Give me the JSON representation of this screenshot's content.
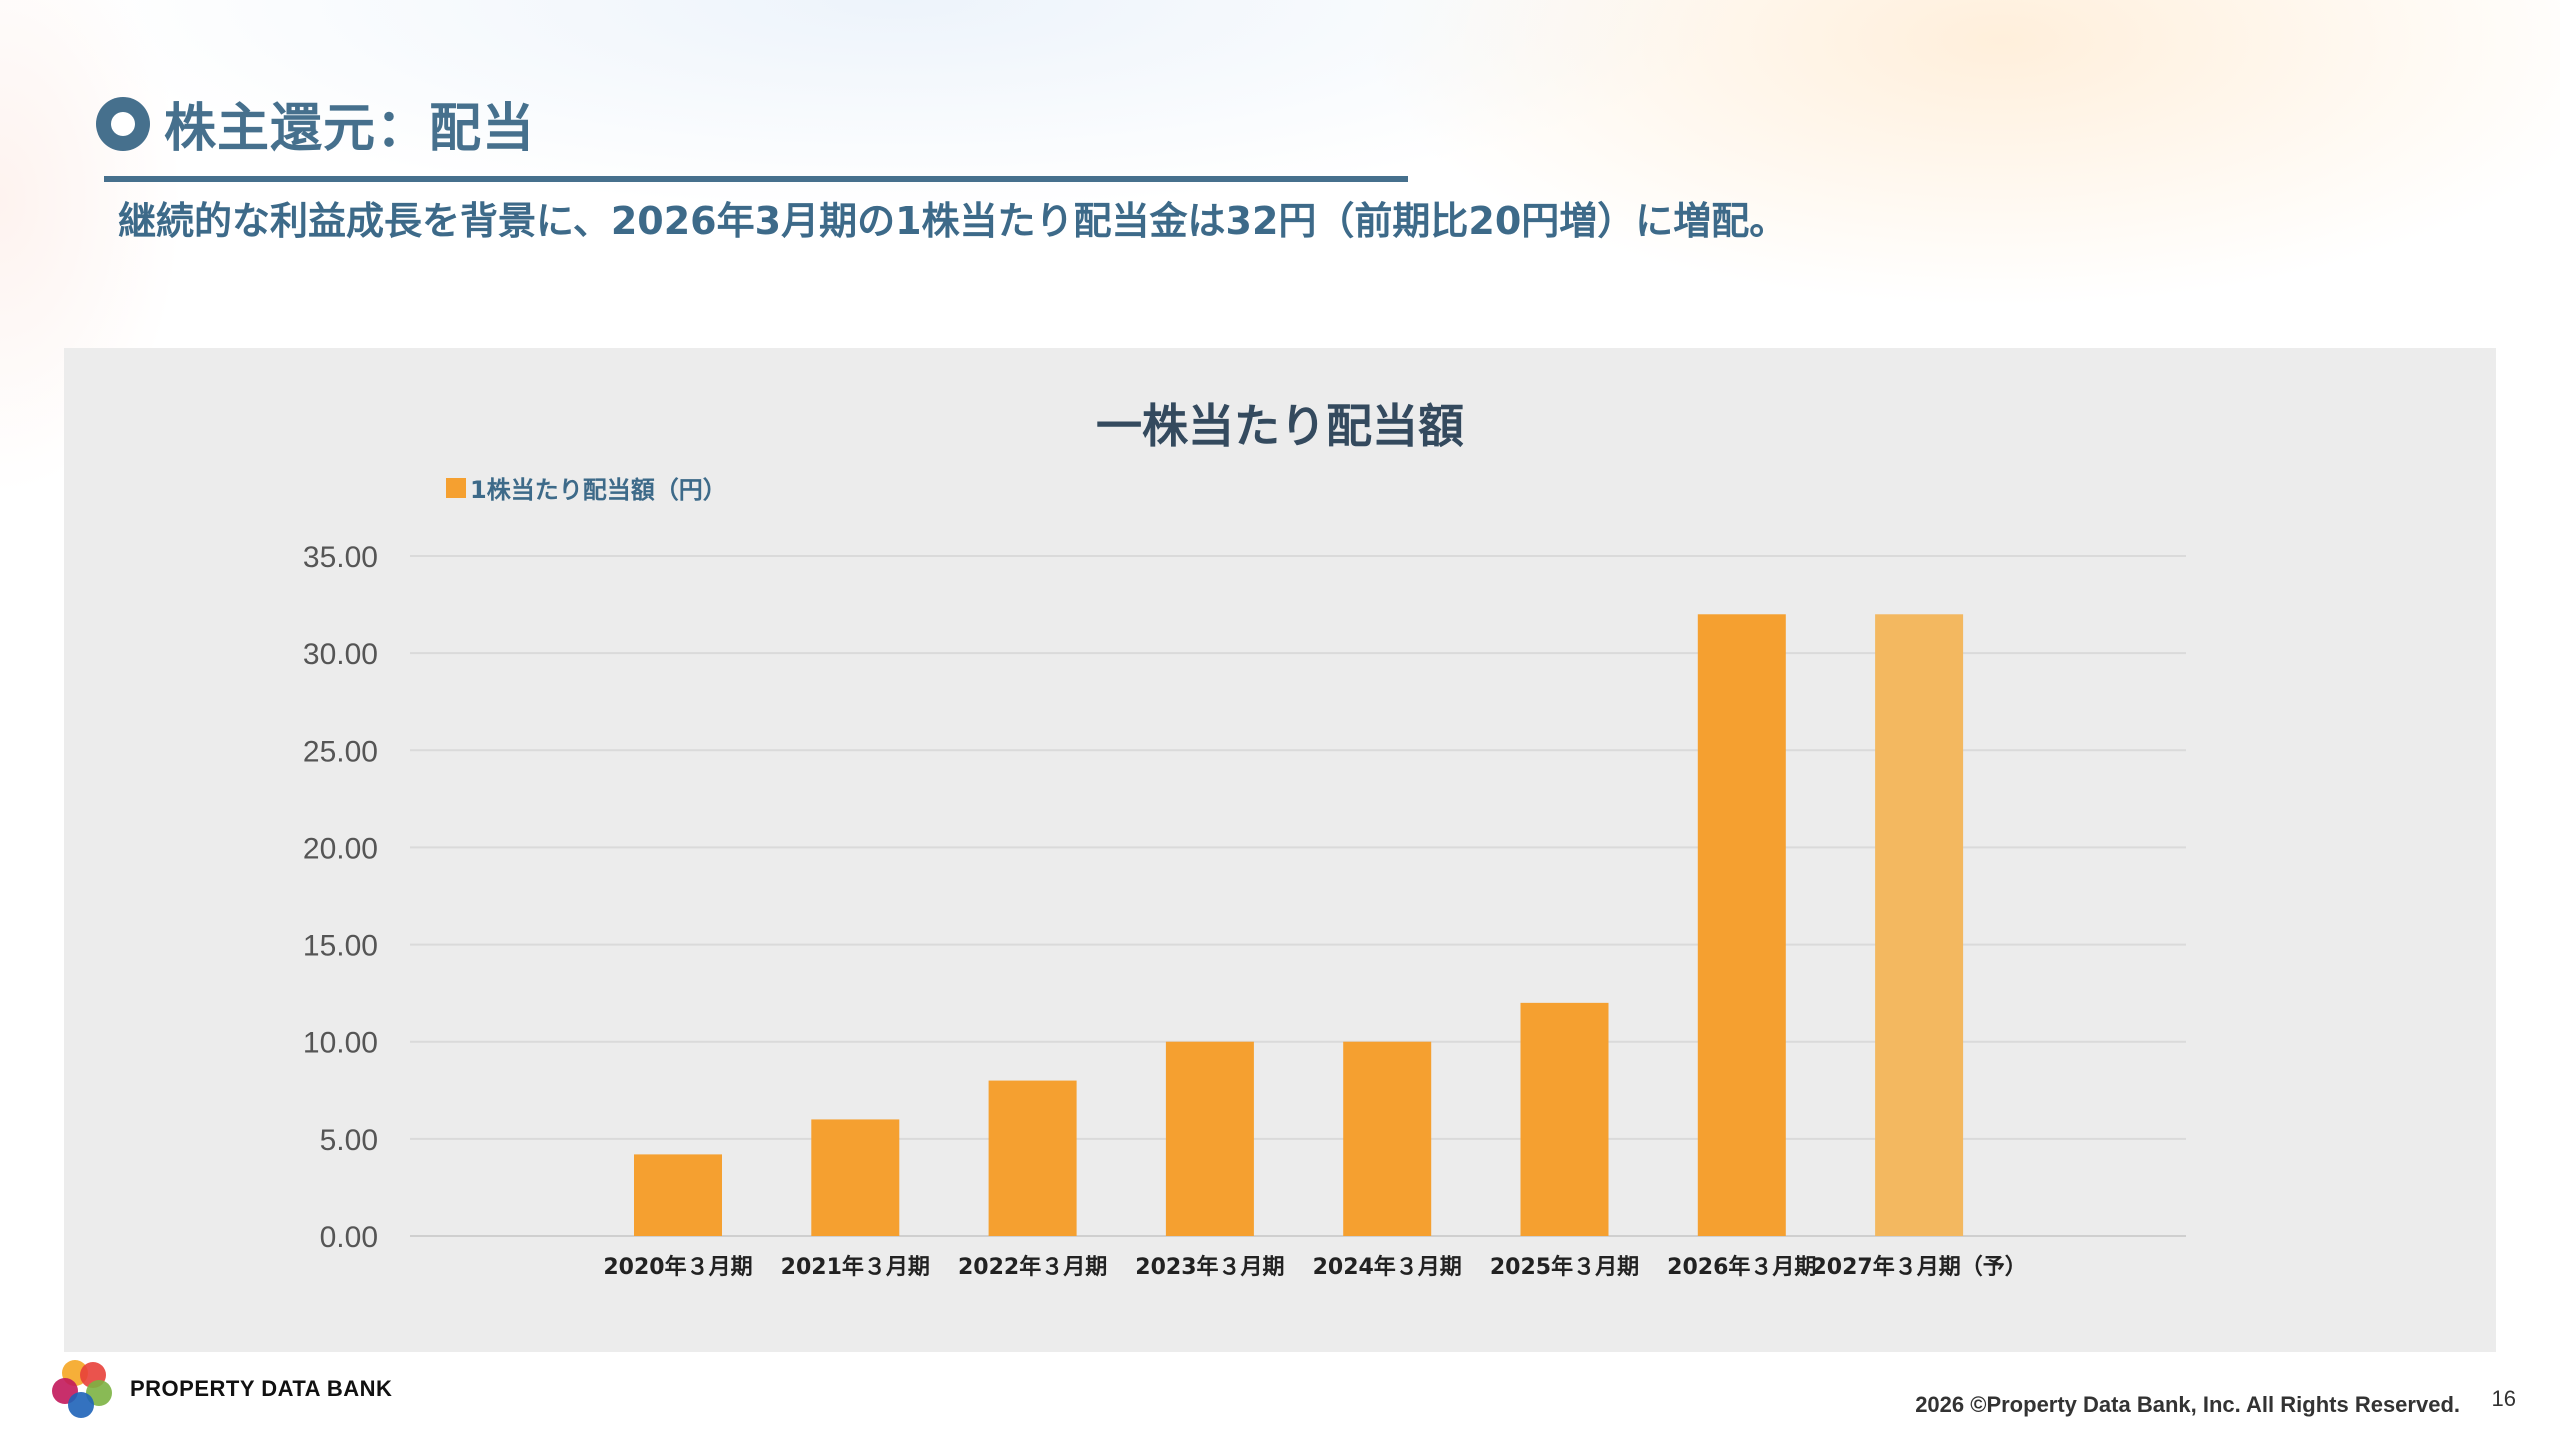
{
  "slide": {
    "title": "株主還元：配当",
    "subtitle": "継続的な利益成長を背景に、2026年3月期の1株当たり配当金は32円（前期比20円増）に増配。",
    "page_number": "16"
  },
  "footer": {
    "logo_text": "PROPERTY DATA BANK",
    "copyright": "2026 ©Property Data Bank, Inc. All Rights Reserved."
  },
  "colors": {
    "bar": "#f5a030",
    "bar_forecast": "#f3b860",
    "title_blue": "#46708d",
    "panel_bg": "#ececec"
  },
  "chart_data": {
    "type": "bar",
    "title": "一株当たり配当額",
    "categories": [
      "2020年３月期",
      "2021年３月期",
      "2022年３月期",
      "2023年３月期",
      "2024年３月期",
      "2025年３月期",
      "2026年３月期",
      "2027年３月期（予）"
    ],
    "series": [
      {
        "name": "1株当たり配当額（円）",
        "values": [
          4.2,
          6.0,
          8.0,
          10.0,
          10.0,
          12.0,
          32.0,
          32.0
        ]
      }
    ],
    "forecast_flags": [
      false,
      false,
      false,
      false,
      false,
      false,
      false,
      true
    ],
    "ylim": [
      0,
      35
    ],
    "yticks": [
      "0.00",
      "5.00",
      "10.00",
      "15.00",
      "20.00",
      "25.00",
      "30.00",
      "35.00"
    ],
    "xlabel": "",
    "ylabel": "",
    "grid": true,
    "legend_position": "top-left"
  }
}
